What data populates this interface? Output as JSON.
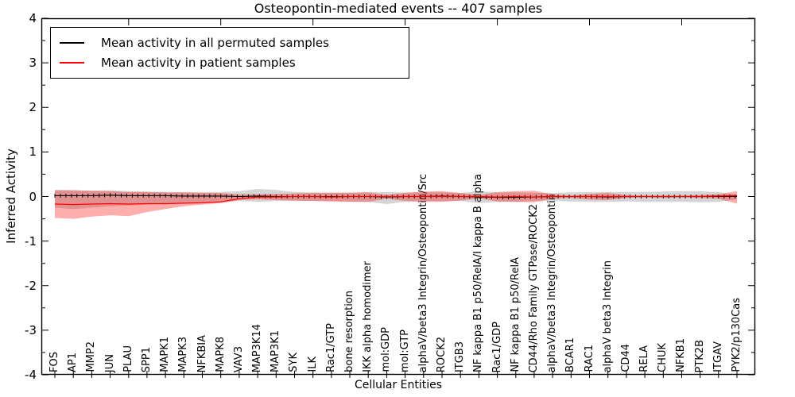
{
  "title": "Osteopontin-mediated events -- 407 samples",
  "axes": {
    "ylabel": "Inferred Activity",
    "xlabel": "Cellular Entities",
    "ytick_labels": [
      "4",
      "3",
      "2",
      "1",
      "0",
      "-1",
      "-2",
      "-3",
      "-4"
    ],
    "ytick_values": [
      4,
      3,
      2,
      1,
      0,
      -1,
      -2,
      -3,
      -4
    ],
    "ylim": [
      -4,
      4
    ]
  },
  "legend": {
    "items": [
      {
        "label": "Mean activity in all permuted samples",
        "color": "#000000"
      },
      {
        "label": "Mean activity in patient samples",
        "color": "#ff0000"
      }
    ]
  },
  "colors": {
    "permuted_line": "#000000",
    "patient_line": "#ff0000",
    "permuted_band": "#888888",
    "patient_band": "#ff0000",
    "frame": "#000000"
  },
  "chart_data": {
    "type": "line",
    "title": "Osteopontin-mediated events -- 407 samples",
    "xlabel": "Cellular Entities",
    "ylabel": "Inferred Activity",
    "ylim": [
      -4,
      4
    ],
    "grid": false,
    "legend_position": "upper left",
    "categories": [
      "FOS",
      "AP1",
      "MMP2",
      "JUN",
      "PLAU",
      "SPP1",
      "MAPK1",
      "MAPK3",
      "NFKBIA",
      "MAPK8",
      "VAV3",
      "MAP3K14",
      "MAP3K1",
      "SYK",
      "ILK",
      "Rac1/GTP",
      "bone resorption",
      "IKK alpha homodimer",
      "mol:GDP",
      "mol:GTP",
      "alphaV/beta3 Integrin/Osteopontin/Src",
      "ROCK2",
      "ITGB3",
      "NF kappa B1 p50/RelA/I kappa B alpha",
      "Rac1/GDP",
      "NF kappa B1 p50/RelA",
      "CD44/Rho Family GTPase/ROCK2",
      "alphaV/beta3 Integrin/Osteopontin",
      "BCAR1",
      "RAC1",
      "alphaV beta3 Integrin",
      "CD44",
      "RELA",
      "CHUK",
      "NFKB1",
      "PTK2B",
      "ITGAV",
      "PYK2/p130Cas"
    ],
    "series": [
      {
        "name": "Mean activity in all permuted samples",
        "color": "#000000",
        "values": [
          0.02,
          0.02,
          0.02,
          0.03,
          0.02,
          0.02,
          0.02,
          0.01,
          0.01,
          0.01,
          0.0,
          0.01,
          0.0,
          0.0,
          0.0,
          0.0,
          0.0,
          0.0,
          -0.01,
          0.0,
          0.0,
          0.01,
          0.0,
          -0.01,
          -0.02,
          -0.02,
          -0.01,
          0.0,
          0.0,
          0.0,
          -0.01,
          0.0,
          0.0,
          0.0,
          0.0,
          0.0,
          0.0,
          0.0
        ],
        "band_upper": [
          0.15,
          0.14,
          0.13,
          0.14,
          0.12,
          0.11,
          0.1,
          0.1,
          0.1,
          0.1,
          0.12,
          0.17,
          0.15,
          0.1,
          0.09,
          0.09,
          0.09,
          0.1,
          0.1,
          0.09,
          0.09,
          0.09,
          0.08,
          0.12,
          0.09,
          0.09,
          0.08,
          0.08,
          0.09,
          0.1,
          0.1,
          0.1,
          0.1,
          0.11,
          0.12,
          0.12,
          0.1,
          0.04
        ],
        "band_lower": [
          -0.25,
          -0.28,
          -0.25,
          -0.22,
          -0.2,
          -0.18,
          -0.15,
          -0.14,
          -0.13,
          -0.12,
          -0.1,
          -0.12,
          -0.1,
          -0.1,
          -0.1,
          -0.1,
          -0.11,
          -0.12,
          -0.17,
          -0.12,
          -0.1,
          -0.1,
          -0.1,
          -0.15,
          -0.12,
          -0.12,
          -0.1,
          -0.1,
          -0.11,
          -0.12,
          -0.12,
          -0.11,
          -0.12,
          -0.12,
          -0.12,
          -0.13,
          -0.12,
          -0.06
        ]
      },
      {
        "name": "Mean activity in patient samples",
        "color": "#ff0000",
        "values": [
          -0.17,
          -0.18,
          -0.17,
          -0.16,
          -0.17,
          -0.16,
          -0.16,
          -0.15,
          -0.14,
          -0.12,
          -0.05,
          -0.01,
          -0.01,
          0.0,
          0.0,
          -0.01,
          0.0,
          0.0,
          0.0,
          0.0,
          0.0,
          0.0,
          0.0,
          0.0,
          -0.01,
          0.0,
          -0.01,
          0.0,
          0.0,
          0.0,
          0.0,
          0.0,
          0.0,
          0.0,
          0.0,
          0.0,
          0.01,
          0.02
        ],
        "band_upper": [
          0.14,
          0.14,
          0.13,
          0.12,
          0.1,
          0.1,
          0.09,
          0.09,
          0.08,
          0.08,
          0.05,
          0.05,
          0.06,
          0.07,
          0.08,
          0.08,
          0.08,
          0.09,
          0.04,
          0.08,
          0.11,
          0.12,
          0.08,
          0.03,
          0.1,
          0.12,
          0.13,
          0.05,
          0.02,
          0.06,
          0.08,
          0.03,
          0.02,
          0.02,
          0.02,
          0.03,
          0.05,
          0.12
        ],
        "band_lower": [
          -0.48,
          -0.5,
          -0.45,
          -0.42,
          -0.44,
          -0.35,
          -0.28,
          -0.22,
          -0.18,
          -0.15,
          -0.08,
          -0.06,
          -0.08,
          -0.09,
          -0.1,
          -0.11,
          -0.12,
          -0.12,
          -0.05,
          -0.1,
          -0.12,
          -0.12,
          -0.09,
          -0.04,
          -0.11,
          -0.12,
          -0.13,
          -0.05,
          -0.03,
          -0.07,
          -0.08,
          -0.03,
          -0.02,
          -0.03,
          -0.02,
          -0.03,
          -0.05,
          -0.16
        ]
      }
    ]
  }
}
